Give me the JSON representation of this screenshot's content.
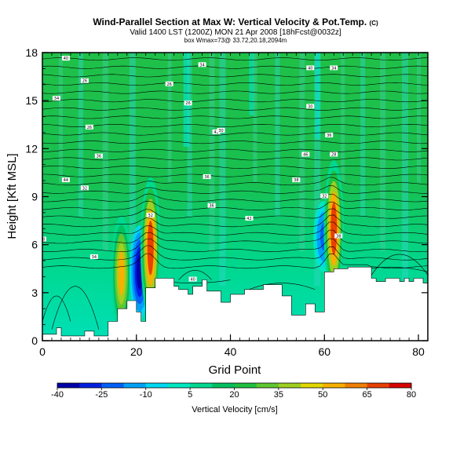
{
  "chart_data": {
    "type": "heatmap",
    "title": "Wind-Parallel Section at Max W: Vertical Velocity & Pot.Temp.",
    "title_mark": "(C)",
    "subtitle": "Valid 1400 LST (1200Z) MON 21 Apr 2008 [18hFcst@0032z]",
    "subtitle2": "box Wmax=73@ 33.72,20.18,2094m",
    "xlabel": "Grid Point",
    "ylabel": "Height [Kft MSL]",
    "xlim": [
      0,
      82
    ],
    "ylim": [
      0,
      18
    ],
    "x_ticks": [
      0,
      20,
      40,
      60,
      80
    ],
    "y_ticks": [
      0,
      3,
      6,
      9,
      12,
      15,
      18
    ],
    "colorbar": {
      "label": "Vertical Velocity [cm/s]",
      "ticks": [
        -40,
        -25,
        -10,
        5,
        20,
        35,
        50,
        65,
        80
      ],
      "colors": [
        "#0000a8",
        "#0020e0",
        "#0060f8",
        "#00a0f8",
        "#00d8f0",
        "#00e8c0",
        "#00d890",
        "#00c060",
        "#20c040",
        "#60c830",
        "#a0d020",
        "#e0d800",
        "#f8b000",
        "#f08000",
        "#e84000",
        "#d80000"
      ]
    },
    "terrain": [
      [
        0,
        0.4
      ],
      [
        3,
        0.4
      ],
      [
        3,
        0.8
      ],
      [
        4,
        0.8
      ],
      [
        4,
        0.3
      ],
      [
        9,
        0.3
      ],
      [
        9,
        0.6
      ],
      [
        11,
        0.6
      ],
      [
        11,
        0.3
      ],
      [
        14,
        0.3
      ],
      [
        14,
        1.2
      ],
      [
        16,
        1.2
      ],
      [
        16,
        2.0
      ],
      [
        18,
        2.0
      ],
      [
        18,
        2.5
      ],
      [
        20,
        2.5
      ],
      [
        20,
        1.8
      ],
      [
        21,
        1.8
      ],
      [
        21,
        1.2
      ],
      [
        22,
        1.2
      ],
      [
        22,
        3.3
      ],
      [
        24,
        3.3
      ],
      [
        24,
        3.9
      ],
      [
        28,
        3.9
      ],
      [
        28,
        3.4
      ],
      [
        29,
        3.4
      ],
      [
        29,
        3.2
      ],
      [
        31,
        3.2
      ],
      [
        31,
        2.9
      ],
      [
        32,
        2.9
      ],
      [
        32,
        3.4
      ],
      [
        34,
        3.4
      ],
      [
        34,
        3.8
      ],
      [
        35,
        3.8
      ],
      [
        35,
        3.1
      ],
      [
        38,
        3.1
      ],
      [
        38,
        2.4
      ],
      [
        40,
        2.4
      ],
      [
        40,
        2.9
      ],
      [
        43,
        2.9
      ],
      [
        43,
        3.2
      ],
      [
        47,
        3.2
      ],
      [
        47,
        3.5
      ],
      [
        51,
        3.5
      ],
      [
        51,
        2.8
      ],
      [
        53,
        2.8
      ],
      [
        53,
        1.6
      ],
      [
        56,
        1.6
      ],
      [
        56,
        2.3
      ],
      [
        58,
        2.3
      ],
      [
        58,
        1.8
      ],
      [
        60,
        1.8
      ],
      [
        60,
        4.3
      ],
      [
        62,
        4.3
      ],
      [
        62,
        4.5
      ],
      [
        65,
        4.5
      ],
      [
        65,
        4.6
      ],
      [
        70,
        4.6
      ],
      [
        70,
        3.9
      ],
      [
        71,
        3.9
      ],
      [
        71,
        3.7
      ],
      [
        73,
        3.7
      ],
      [
        73,
        3.9
      ],
      [
        76,
        3.9
      ],
      [
        76,
        3.7
      ],
      [
        77,
        3.7
      ],
      [
        77,
        3.9
      ],
      [
        78,
        3.9
      ],
      [
        78,
        3.7
      ],
      [
        79,
        3.7
      ],
      [
        79,
        3.9
      ],
      [
        81,
        3.9
      ],
      [
        81,
        3.6
      ],
      [
        82,
        3.6
      ]
    ],
    "updraft_cores": [
      {
        "x": 16.8,
        "z_center": 4.2,
        "w_max": 55
      },
      {
        "x": 20.7,
        "z_center": 4.3,
        "w_max": -40
      },
      {
        "x": 23.0,
        "z_center": 5.8,
        "w_max": 73
      },
      {
        "x": 59.8,
        "z_center": 6.5,
        "w_max": -25
      },
      {
        "x": 62.0,
        "z_center": 7.0,
        "w_max": 70
      }
    ],
    "contour_labels": [
      "40",
      "26",
      "26",
      "34",
      "34",
      "34",
      "26",
      "30",
      "26",
      "42",
      "36",
      "36",
      "46",
      "44",
      "36",
      "38",
      "32",
      "36",
      "42",
      "32",
      "32",
      "38",
      "28",
      "34",
      "40",
      "40",
      "30",
      "28"
    ]
  }
}
